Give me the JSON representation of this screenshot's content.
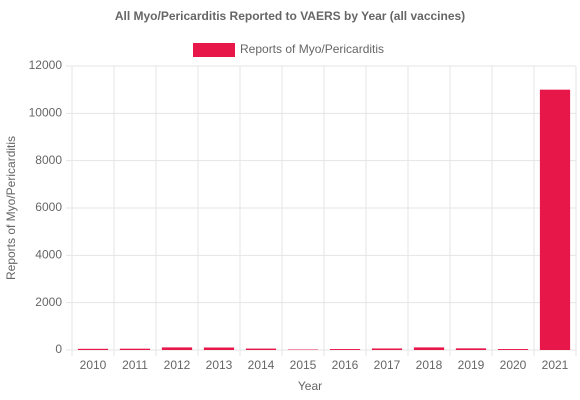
{
  "chart_data": {
    "type": "bar",
    "title": "All Myo/Pericarditis Reported to VAERS by Year (all vaccines)",
    "x_label": "Year",
    "y_label": "Reports of Myo/Pericarditis",
    "categories": [
      "2010",
      "2011",
      "2012",
      "2013",
      "2014",
      "2015",
      "2016",
      "2017",
      "2018",
      "2019",
      "2020",
      "2021"
    ],
    "series": [
      {
        "name": "Reports of Myo/Pericarditis",
        "color": "#e8174a",
        "values": [
          50,
          55,
          110,
          105,
          60,
          20,
          40,
          65,
          110,
          70,
          40,
          11000
        ]
      }
    ],
    "ylim": [
      0,
      12000
    ],
    "yticks": [
      0,
      2000,
      4000,
      6000,
      8000,
      10000,
      12000
    ],
    "grid": true
  }
}
